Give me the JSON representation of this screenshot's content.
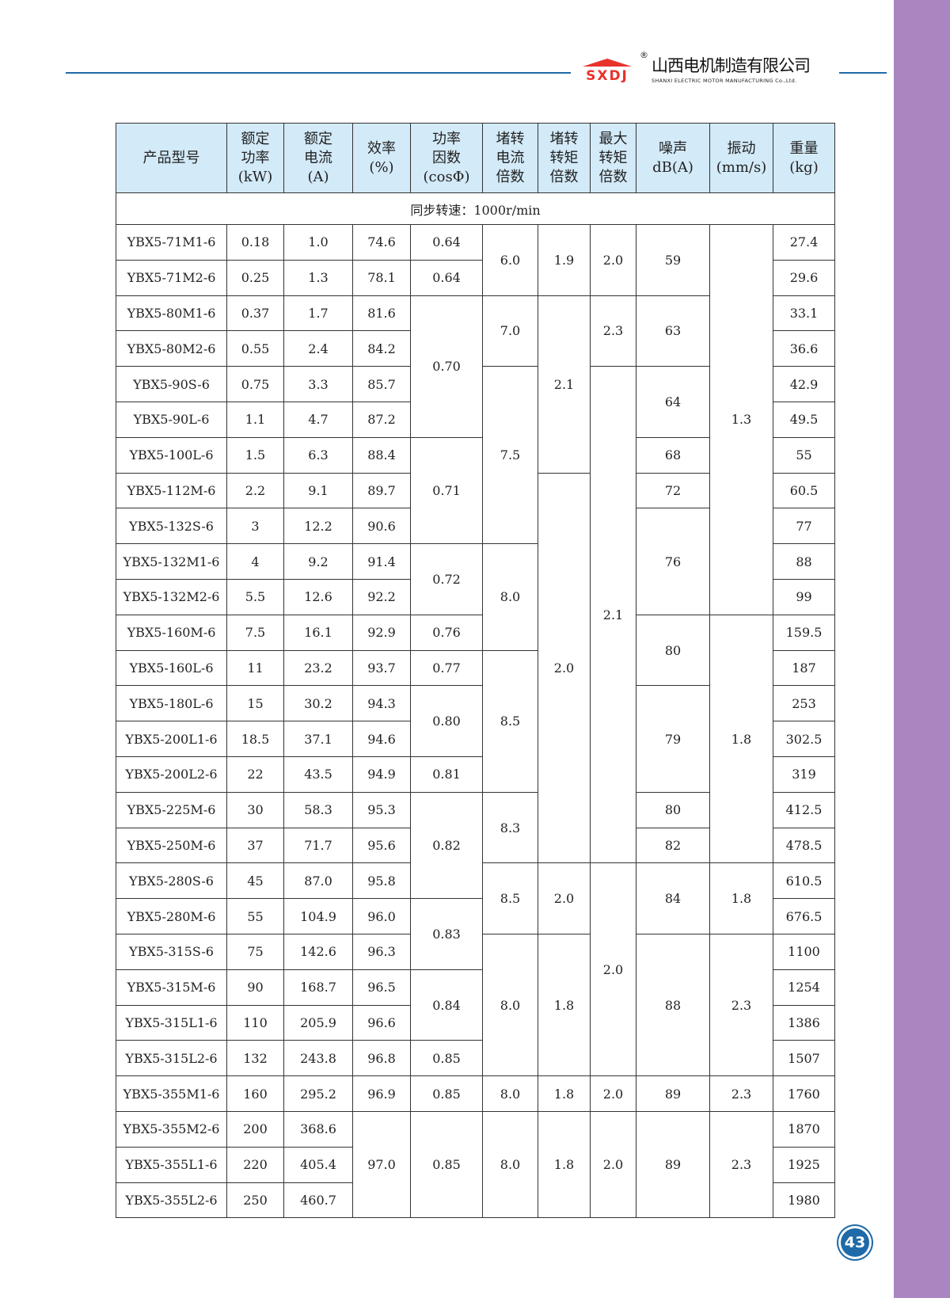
{
  "header": {
    "logo_mark": "SXDJ",
    "registered": "®",
    "company_cn": "山西电机制造有限公司",
    "company_en": "SHANXI ELECTRIC MOTOR MANUFACTURING Co.,Ltd.",
    "accent_color": "#1f6aa8",
    "sidebar_color": "#a986bf"
  },
  "table": {
    "headers": [
      "产品型号",
      "额定\n功率\n(kW)",
      "额定\n电流\n(A)",
      "效率\n(%)",
      "功率\n因数\n(cosΦ)",
      "堵转\n电流\n倍数",
      "堵转\n转矩\n倍数",
      "最大\n转矩\n倍数",
      "噪声\ndB(A)",
      "振动\n(mm/s)",
      "重量\n(kg)"
    ],
    "section": "同步转速：1000r/min",
    "rows": [
      [
        "YBX5-71M1-6",
        "0.18",
        "1.0",
        "74.6",
        "0.64",
        [
          "6.0",
          2
        ],
        [
          "1.9",
          2
        ],
        [
          "2.0",
          2
        ],
        [
          "59",
          2
        ],
        [
          "1.3",
          11
        ],
        "27.4"
      ],
      [
        "YBX5-71M2-6",
        "0.25",
        "1.3",
        "78.1",
        "0.64",
        "29.6"
      ],
      [
        "YBX5-80M1-6",
        "0.37",
        "1.7",
        "81.6",
        [
          "0.70",
          4
        ],
        [
          "7.0",
          2
        ],
        [
          "2.1",
          5
        ],
        [
          "2.3",
          2
        ],
        [
          "63",
          2
        ],
        "33.1"
      ],
      [
        "YBX5-80M2-6",
        "0.55",
        "2.4",
        "84.2",
        "36.6"
      ],
      [
        "YBX5-90S-6",
        "0.75",
        "3.3",
        "85.7",
        [
          "7.5",
          5
        ],
        [
          "2.1",
          14
        ],
        [
          "64",
          2
        ],
        "42.9"
      ],
      [
        "YBX5-90L-6",
        "1.1",
        "4.7",
        "87.2",
        "49.5"
      ],
      [
        "YBX5-100L-6",
        "1.5",
        "6.3",
        "88.4",
        [
          "0.71",
          3
        ],
        "68",
        "55"
      ],
      [
        "YBX5-112M-6",
        "2.2",
        "9.1",
        "89.7",
        [
          "2.0",
          11
        ],
        "72",
        "60.5"
      ],
      [
        "YBX5-132S-6",
        "3",
        "12.2",
        "90.6",
        [
          "76",
          3
        ],
        "77"
      ],
      [
        "YBX5-132M1-6",
        "4",
        "9.2",
        "91.4",
        [
          "0.72",
          2
        ],
        [
          "8.0",
          3
        ],
        "88"
      ],
      [
        "YBX5-132M2-6",
        "5.5",
        "12.6",
        "92.2",
        "99"
      ],
      [
        "YBX5-160M-6",
        "7.5",
        "16.1",
        "92.9",
        "0.76",
        [
          "80",
          2
        ],
        [
          "1.8",
          7
        ],
        "159.5"
      ],
      [
        "YBX5-160L-6",
        "11",
        "23.2",
        "93.7",
        "0.77",
        [
          "8.5",
          4
        ],
        "187"
      ],
      [
        "YBX5-180L-6",
        "15",
        "30.2",
        "94.3",
        [
          "0.80",
          2
        ],
        [
          "79",
          3
        ],
        "253"
      ],
      [
        "YBX5-200L1-6",
        "18.5",
        "37.1",
        "94.6",
        "302.5"
      ],
      [
        "YBX5-200L2-6",
        "22",
        "43.5",
        "94.9",
        "0.81",
        "319"
      ],
      [
        "YBX5-225M-6",
        "30",
        "58.3",
        "95.3",
        [
          "0.82",
          3
        ],
        [
          "8.3",
          2
        ],
        "80",
        "412.5"
      ],
      [
        "YBX5-250M-6",
        "37",
        "71.7",
        "95.6",
        "82",
        "478.5"
      ],
      [
        "YBX5-280S-6",
        "45",
        "87.0",
        "95.8",
        [
          "8.5",
          2
        ],
        [
          "2.0",
          2
        ],
        [
          "2.0",
          6
        ],
        [
          "84",
          2
        ],
        [
          "1.8",
          2
        ],
        "610.5"
      ],
      [
        "YBX5-280M-6",
        "55",
        "104.9",
        "96.0",
        [
          "0.83",
          2
        ],
        "676.5"
      ],
      [
        "YBX5-315S-6",
        "75",
        "142.6",
        "96.3",
        [
          "8.0",
          4
        ],
        [
          "1.8",
          4
        ],
        [
          "88",
          4
        ],
        [
          "2.3",
          4
        ],
        "1100"
      ],
      [
        "YBX5-315M-6",
        "90",
        "168.7",
        "96.5",
        [
          "0.84",
          2
        ],
        "1254"
      ],
      [
        "YBX5-315L1-6",
        "110",
        "205.9",
        "96.6",
        "1386"
      ],
      [
        "YBX5-315L2-6",
        "132",
        "243.8",
        "96.8",
        "0.85",
        "1507"
      ],
      [
        "YBX5-355M1-6",
        "160",
        "295.2",
        "96.9",
        "0.85",
        "8.0",
        "1.8",
        "2.0",
        "89",
        "2.3",
        "1760"
      ],
      [
        "YBX5-355M2-6",
        "200",
        "368.6",
        [
          "97.0",
          3
        ],
        [
          "0.85",
          3
        ],
        [
          "8.0",
          3
        ],
        [
          "1.8",
          3
        ],
        [
          "2.0",
          3
        ],
        [
          "89",
          3
        ],
        [
          "2.3",
          3
        ],
        "1870"
      ],
      [
        "YBX5-355L1-6",
        "220",
        "405.4",
        "1925"
      ],
      [
        "YBX5-355L2-6",
        "250",
        "460.7",
        "1980"
      ]
    ]
  },
  "page_number": "43"
}
